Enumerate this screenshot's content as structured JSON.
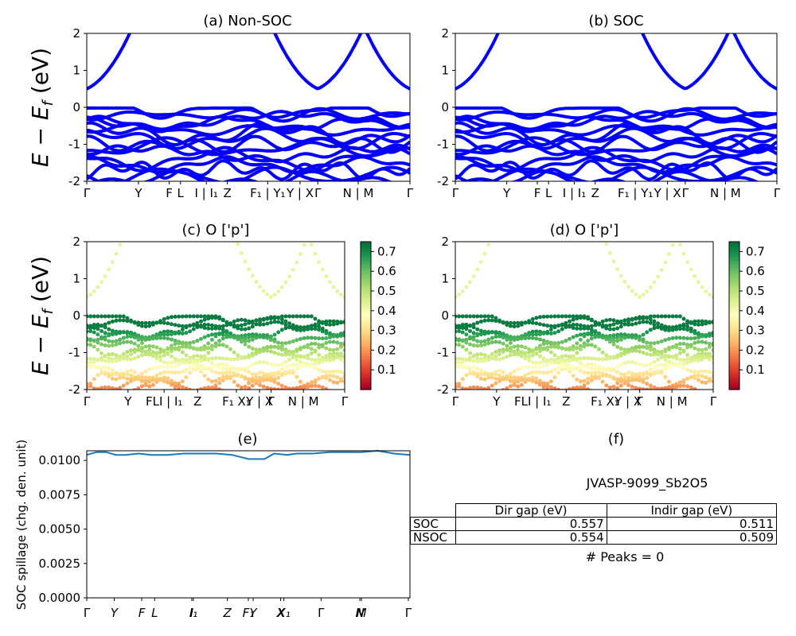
{
  "figure": {
    "jid_label": "JVASP-9099_Sb2O5",
    "peaks_label": "# Peaks = 0"
  },
  "kpath_ticks": [
    "Γ",
    "Y",
    "F",
    "L",
    "I | I₁",
    "Z",
    "F₁ | Y₁",
    "Y | X",
    "Γ",
    "N | M",
    "Γ"
  ],
  "kpath_ticks_small": [
    "Γ",
    "Y",
    "FLI | I₁",
    "Z",
    "F₁ X₁",
    "Y | X",
    "Γ",
    "N | M",
    "Γ"
  ],
  "chart_data": [
    {
      "panel": "a",
      "type": "line",
      "title": "(a) Non-SOC",
      "ylabel": "E − E_f (eV)",
      "ylim": [
        -2,
        2
      ],
      "yticks": [
        -2,
        -1,
        0,
        1,
        2
      ],
      "series": [
        {
          "name": "",
          "color": "#ff0000",
          "style": "dashed"
        },
        {
          "name": "",
          "color": "#0000ff",
          "style": "solid"
        }
      ],
      "band_gap_min_conduction": 0.5
    },
    {
      "panel": "b",
      "type": "line",
      "title": "(b) SOC",
      "ylim": [
        -2,
        2
      ],
      "yticks": [
        -2,
        -1,
        0,
        1,
        2
      ],
      "series": [
        {
          "name": "",
          "color": "#0000ff",
          "style": "solid"
        }
      ]
    },
    {
      "panel": "c",
      "type": "scatter",
      "title": "(c)  O ['p']",
      "ylabel": "E − E_f (eV)",
      "ylim": [
        -2,
        2
      ],
      "yticks": [
        -2,
        -1,
        0,
        1,
        2
      ],
      "colorbar_ticks": [
        0.1,
        0.2,
        0.3,
        0.4,
        0.5,
        0.6,
        0.7
      ],
      "colormap": "RdYlGn",
      "crange": [
        0.0,
        0.75
      ]
    },
    {
      "panel": "d",
      "type": "scatter",
      "title": "(d) O ['p']",
      "ylim": [
        -2,
        2
      ],
      "yticks": [
        -2,
        -1,
        0,
        1,
        2
      ],
      "colorbar_ticks": [
        0.1,
        0.2,
        0.3,
        0.4,
        0.5,
        0.6,
        0.7
      ],
      "colormap": "RdYlGn",
      "crange": [
        0.0,
        0.75
      ]
    },
    {
      "panel": "e",
      "type": "line",
      "title": "(e)",
      "ylabel": "SOC spillage (chg. den. unit)",
      "ylim": [
        0.0,
        0.0107
      ],
      "yticks": [
        "0.0000",
        "0.0025",
        "0.0050",
        "0.0075",
        "0.0100"
      ],
      "xticks": [
        "Γ",
        "Y",
        "F",
        "L",
        "I",
        "I₁",
        "Z",
        "F₁",
        "Y",
        "X",
        "X₁",
        "Γ",
        "N",
        "M",
        "Γ"
      ],
      "x": [
        0,
        0.03,
        0.06,
        0.09,
        0.12,
        0.16,
        0.2,
        0.25,
        0.3,
        0.35,
        0.4,
        0.45,
        0.5,
        0.55,
        0.58,
        0.62,
        0.65,
        0.7,
        0.75,
        0.8,
        0.85,
        0.9,
        0.95,
        1.0
      ],
      "values": [
        0.0104,
        0.0106,
        0.0106,
        0.0104,
        0.0104,
        0.0105,
        0.0104,
        0.0104,
        0.0105,
        0.0105,
        0.0105,
        0.0104,
        0.0101,
        0.0101,
        0.0105,
        0.0104,
        0.0105,
        0.0105,
        0.0106,
        0.0106,
        0.0106,
        0.0107,
        0.0105,
        0.0104
      ],
      "color": "#1f77b4"
    },
    {
      "panel": "f",
      "type": "table",
      "title": "(f)",
      "columns": [
        "",
        "Dir gap (eV)",
        "Indir gap (eV)"
      ],
      "rows": [
        [
          "SOC",
          "0.557",
          "0.511"
        ],
        [
          "NSOC",
          "0.554",
          "0.509"
        ]
      ]
    }
  ]
}
